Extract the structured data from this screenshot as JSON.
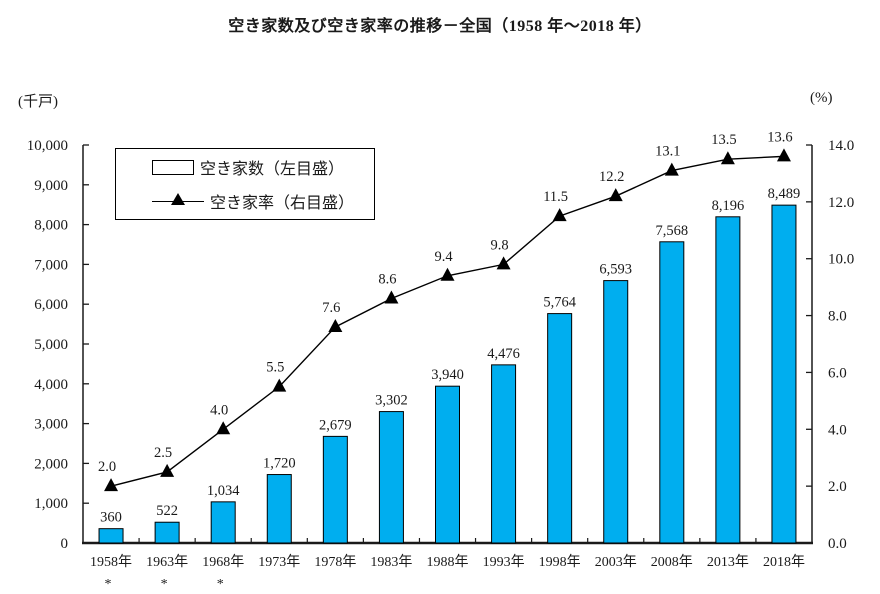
{
  "title": "空き家数及び空き家率の推移－全国（1958 年～2018 年）",
  "axes": {
    "left_unit": "(千戸)",
    "right_unit": "(%)"
  },
  "legend": {
    "bars_label": "空き家数（左目盛）",
    "line_label": "空き家率（右目盛）"
  },
  "footnote_symbol": "*",
  "colors": {
    "bar_fill": "#00AEEF",
    "bar_stroke": "#000000",
    "line_color": "#000000",
    "axis_color": "#1a1a1a"
  },
  "chart_data": {
    "type": "combo-bar-line",
    "categories": [
      "1958年",
      "1963年",
      "1968年",
      "1973年",
      "1978年",
      "1983年",
      "1988年",
      "1993年",
      "1998年",
      "2003年",
      "2008年",
      "2013年",
      "2018年"
    ],
    "asterisk_categories": [
      "1958年",
      "1963年",
      "1968年"
    ],
    "series": [
      {
        "name": "空き家数（左目盛）",
        "type": "bar",
        "axis": "left",
        "values": [
          360,
          522,
          1034,
          1720,
          2679,
          3302,
          3940,
          4476,
          5764,
          6593,
          7568,
          8196,
          8489
        ]
      },
      {
        "name": "空き家率（右目盛）",
        "type": "line",
        "axis": "right",
        "values": [
          2.0,
          2.5,
          4.0,
          5.5,
          7.6,
          8.6,
          9.4,
          9.8,
          11.5,
          12.2,
          13.1,
          13.5,
          13.6
        ]
      }
    ],
    "left_axis": {
      "unit": "(千戸)",
      "min": 0,
      "max": 10000,
      "step": 1000
    },
    "right_axis": {
      "unit": "(%)",
      "min": 0,
      "max": 14,
      "step": 2
    },
    "grid": false,
    "legend_position": "top-left",
    "data_labels": true
  }
}
